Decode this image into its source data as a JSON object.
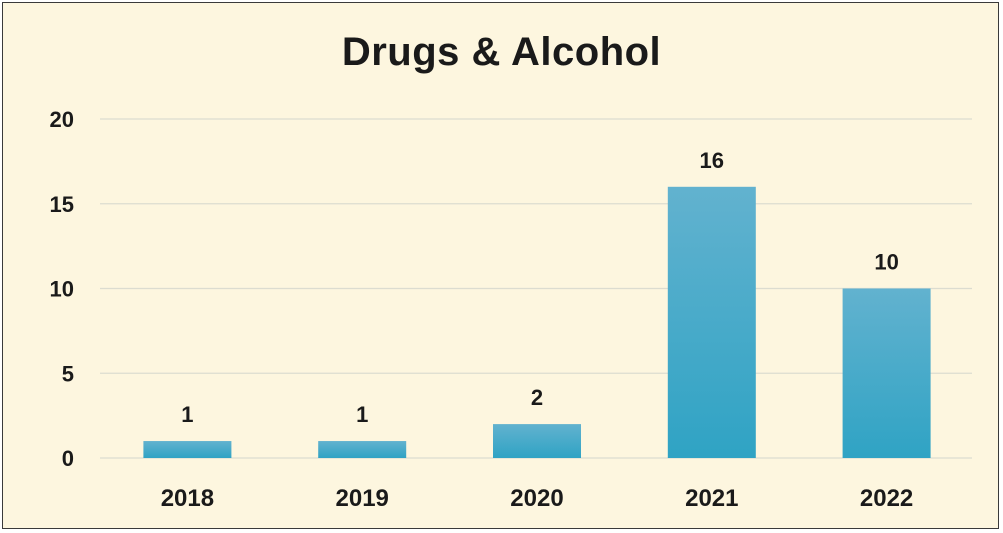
{
  "chart_data": {
    "type": "bar",
    "title": "Drugs & Alcohol",
    "categories": [
      "2018",
      "2019",
      "2020",
      "2021",
      "2022"
    ],
    "values": [
      1,
      1,
      2,
      16,
      10
    ],
    "data_labels": [
      "1",
      "1",
      "2",
      "16",
      "10"
    ],
    "yticks": [
      "0",
      "5",
      "10",
      "15",
      "20"
    ],
    "ylim": [
      0,
      20
    ],
    "grid": true,
    "legend": "none",
    "xlabel": "",
    "ylabel": ""
  },
  "colors": {
    "background": "#fdf6df",
    "bar_top": "#62b2cf",
    "bar_bottom": "#2fa3c4",
    "grid": "#dcdcd0",
    "text": "#1a1a1a"
  }
}
